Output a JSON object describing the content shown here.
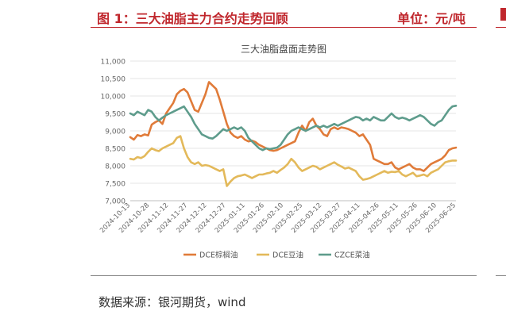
{
  "header": {
    "figure_title": "图 1：三大油脂主力合约走势回顾",
    "unit_label": "单位：元/吨"
  },
  "footer": {
    "source": "数据来源：银河期货，wind"
  },
  "colors": {
    "accent": "#c0272d",
    "dce_palm": "#e07b39",
    "dce_soy": "#e3b95a",
    "czce_rape": "#5e9c8c",
    "axis_text": "#666666",
    "grid": "#e6e6e6"
  },
  "chart_data": {
    "type": "line",
    "title": "三大油脂盘面走势图",
    "xlabel": "",
    "ylabel": "",
    "ylim": [
      7000,
      11000
    ],
    "yticks": [
      7000,
      7500,
      8000,
      8500,
      9000,
      9500,
      10000,
      10500,
      11000
    ],
    "ytick_labels": [
      "7,000",
      "7,500",
      "8,000",
      "8,500",
      "9,000",
      "9,500",
      "10,000",
      "10,500",
      "11,000"
    ],
    "xtick_labels": [
      "2024-10-13",
      "2024-10-28",
      "2024-11-12",
      "2024-11-27",
      "2024-12-12",
      "2024-12-27",
      "2025-01-11",
      "2025-01-26",
      "2025-02-10",
      "2025-02-25",
      "2025-03-12",
      "2025-03-27",
      "2025-04-11",
      "2025-04-26",
      "2025-05-11",
      "2025-05-26",
      "2025-06-10",
      "2025-06-25"
    ],
    "legend_position": "bottom",
    "grid": true,
    "series": [
      {
        "name": "DCE棕榈油",
        "color": "#e07b39",
        "values": [
          8820,
          8750,
          8880,
          8850,
          8900,
          8870,
          9180,
          9250,
          9300,
          9200,
          9500,
          9650,
          9800,
          10050,
          10150,
          10200,
          10100,
          9850,
          9600,
          9550,
          9800,
          10050,
          10400,
          10300,
          10200,
          9900,
          9550,
          9200,
          8950,
          8850,
          8800,
          8850,
          8750,
          8700,
          8720,
          8680,
          8600,
          8550,
          8500,
          8450,
          8430,
          8450,
          8500,
          8550,
          8600,
          8650,
          8700,
          8950,
          9150,
          9000,
          9250,
          9350,
          9150,
          9050,
          8900,
          8850,
          9050,
          9100,
          9050,
          9100,
          9080,
          9050,
          9000,
          8950,
          8850,
          8900,
          8750,
          8600,
          8200,
          8150,
          8100,
          8050,
          8050,
          8100,
          7950,
          7900,
          7950,
          8000,
          8050,
          7950,
          7900,
          7900,
          7850,
          7950,
          8050,
          8100,
          8150,
          8200,
          8300,
          8450,
          8500,
          8520
        ]
      },
      {
        "name": "DCE豆油",
        "color": "#e3b95a",
        "values": [
          8200,
          8180,
          8250,
          8220,
          8280,
          8400,
          8500,
          8450,
          8420,
          8500,
          8550,
          8600,
          8650,
          8800,
          8850,
          8500,
          8250,
          8100,
          8050,
          8100,
          8000,
          8020,
          8000,
          7950,
          7900,
          7850,
          7900,
          7420,
          7550,
          7650,
          7700,
          7720,
          7750,
          7700,
          7650,
          7700,
          7750,
          7750,
          7780,
          7800,
          7850,
          7800,
          7880,
          7950,
          8050,
          8200,
          8100,
          7950,
          7850,
          7900,
          7950,
          8000,
          7970,
          7900,
          7950,
          8000,
          8050,
          8100,
          8030,
          7980,
          7920,
          7950,
          7900,
          7850,
          7700,
          7600,
          7620,
          7650,
          7700,
          7750,
          7800,
          7850,
          7800,
          7830,
          7820,
          7850,
          7750,
          7700,
          7750,
          7800,
          7700,
          7720,
          7750,
          7700,
          7800,
          7850,
          7900,
          8000,
          8100,
          8130,
          8150,
          8150
        ]
      },
      {
        "name": "CZCE菜油",
        "color": "#5e9c8c",
        "values": [
          9500,
          9450,
          9550,
          9500,
          9450,
          9600,
          9550,
          9400,
          9300,
          9380,
          9450,
          9500,
          9550,
          9600,
          9650,
          9700,
          9550,
          9400,
          9200,
          9050,
          8900,
          8850,
          8800,
          8780,
          8850,
          8950,
          9050,
          9000,
          9050,
          9100,
          9050,
          9100,
          9000,
          8800,
          8700,
          8600,
          8500,
          8450,
          8500,
          8480,
          8500,
          8520,
          8600,
          8750,
          8900,
          9000,
          9050,
          9100,
          9050,
          9000,
          9050,
          9100,
          9150,
          9100,
          9150,
          9100,
          9150,
          9200,
          9150,
          9200,
          9250,
          9300,
          9350,
          9400,
          9380,
          9300,
          9350,
          9300,
          9400,
          9350,
          9300,
          9300,
          9400,
          9500,
          9400,
          9350,
          9380,
          9350,
          9300,
          9350,
          9400,
          9450,
          9400,
          9300,
          9200,
          9150,
          9250,
          9300,
          9450,
          9600,
          9700,
          9720
        ]
      }
    ]
  }
}
